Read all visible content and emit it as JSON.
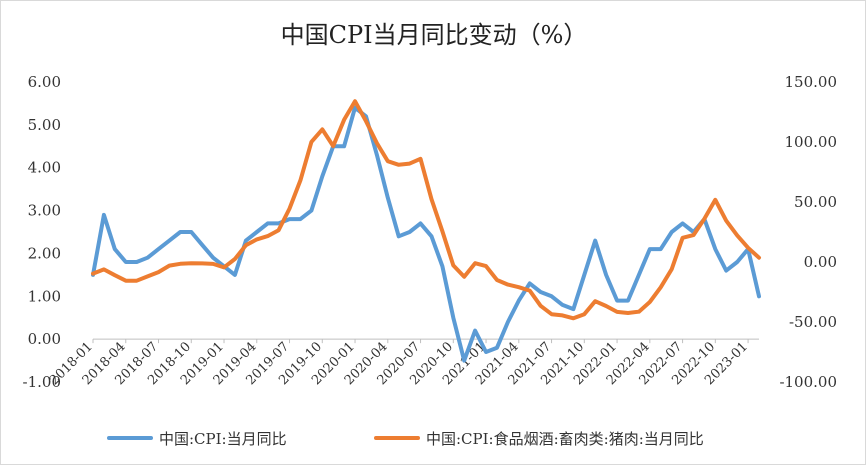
{
  "chart_data": {
    "type": "line",
    "title": "中国CPI当月同比变动（%）",
    "xlabel": "",
    "ylabel": "",
    "x": [
      "2018-01",
      "2018-02",
      "2018-03",
      "2018-04",
      "2018-05",
      "2018-06",
      "2018-07",
      "2018-08",
      "2018-09",
      "2018-10",
      "2018-11",
      "2018-12",
      "2019-01",
      "2019-02",
      "2019-03",
      "2019-04",
      "2019-05",
      "2019-06",
      "2019-07",
      "2019-08",
      "2019-09",
      "2019-10",
      "2019-11",
      "2019-12",
      "2020-01",
      "2020-02",
      "2020-03",
      "2020-04",
      "2020-05",
      "2020-06",
      "2020-07",
      "2020-08",
      "2020-09",
      "2020-10",
      "2020-11",
      "2020-12",
      "2021-01",
      "2021-02",
      "2021-03",
      "2021-04",
      "2021-05",
      "2021-06",
      "2021-07",
      "2021-08",
      "2021-09",
      "2021-10",
      "2021-11",
      "2021-12",
      "2022-01",
      "2022-02",
      "2022-03",
      "2022-04",
      "2022-05",
      "2022-06",
      "2022-07",
      "2022-08",
      "2022-09",
      "2022-10",
      "2022-11",
      "2022-12",
      "2023-01",
      "2023-02"
    ],
    "x_tick_labels": [
      "2018-01",
      "2018-04",
      "2018-07",
      "2018-10",
      "2019-01",
      "2019-04",
      "2019-07",
      "2019-10",
      "2020-01",
      "2020-04",
      "2020-07",
      "2020-10",
      "2021-01",
      "2021-04",
      "2021-07",
      "2021-10",
      "2022-01",
      "2022-04",
      "2022-07",
      "2022-10",
      "2023-01"
    ],
    "y_left": {
      "lim": [
        -1,
        6
      ],
      "ticks": [
        "-1.00",
        "0.00",
        "1.00",
        "2.00",
        "3.00",
        "4.00",
        "5.00",
        "6.00"
      ]
    },
    "y_right": {
      "lim": [
        -100,
        150
      ],
      "ticks": [
        "-100.00",
        "-50.00",
        "0.00",
        "50.00",
        "100.00",
        "150.00"
      ]
    },
    "grid": false,
    "legend_position": "bottom",
    "series": [
      {
        "name": "中国:CPI:当月同比",
        "axis": "left",
        "color": "#5b9bd5",
        "values": [
          1.5,
          2.9,
          2.1,
          1.8,
          1.8,
          1.9,
          2.1,
          2.3,
          2.5,
          2.5,
          2.2,
          1.9,
          1.7,
          1.5,
          2.3,
          2.5,
          2.7,
          2.7,
          2.8,
          2.8,
          3.0,
          3.8,
          4.5,
          4.5,
          5.4,
          5.2,
          4.3,
          3.3,
          2.4,
          2.5,
          2.7,
          2.4,
          1.7,
          0.5,
          -0.5,
          0.2,
          -0.3,
          -0.2,
          0.4,
          0.9,
          1.3,
          1.1,
          1.0,
          0.8,
          0.7,
          1.5,
          2.3,
          1.5,
          0.9,
          0.9,
          1.5,
          2.1,
          2.1,
          2.5,
          2.7,
          2.5,
          2.8,
          2.1,
          1.6,
          1.8,
          2.1,
          1.0
        ]
      },
      {
        "name": "中国:CPI:食品烟酒:畜肉类:猪肉:当月同比",
        "axis": "right",
        "color": "#ed7d31",
        "values": [
          -9.7,
          -6.2,
          -11.0,
          -15.6,
          -15.6,
          -12.0,
          -8.4,
          -3.0,
          -1.5,
          -1.1,
          -1.2,
          -1.6,
          -4.5,
          2.5,
          14.0,
          18.8,
          21.6,
          26.5,
          44.5,
          68.0,
          100.1,
          110.5,
          96.6,
          118.5,
          134.0,
          117.3,
          99.0,
          84.0,
          81.0,
          82.0,
          86.0,
          52.3,
          25.6,
          -2.8,
          -12.3,
          -1.0,
          -3.4,
          -15.0,
          -18.8,
          -21.0,
          -23.8,
          -36.5,
          -43.5,
          -44.5,
          -46.9,
          -43.5,
          -32.7,
          -36.7,
          -41.6,
          -42.5,
          -41.4,
          -33.3,
          -21.1,
          -6.0,
          20.2,
          22.4,
          36.0,
          51.8,
          34.4,
          22.2,
          11.8,
          3.6
        ]
      }
    ]
  }
}
